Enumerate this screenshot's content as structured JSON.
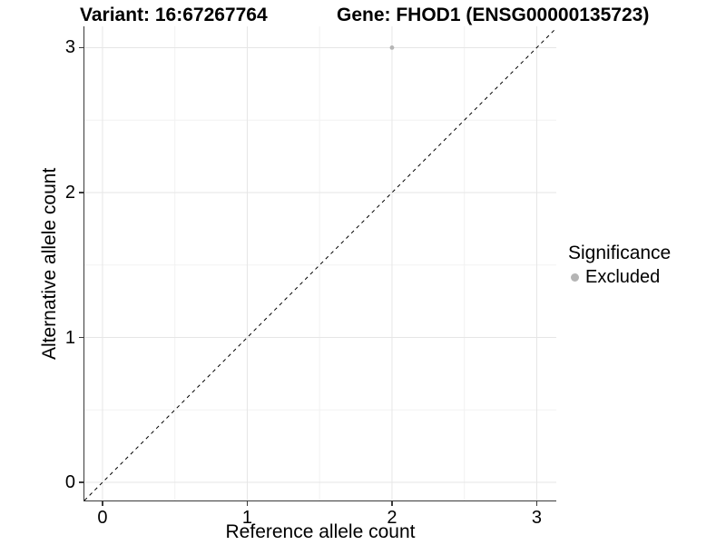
{
  "title": {
    "variant": "Variant: 16:67267764",
    "gene": "Gene: FHOD1 (ENSG00000135723)"
  },
  "axes": {
    "x_label": "Reference allele count",
    "y_label": "Alternative allele count"
  },
  "legend": {
    "title": "Significance",
    "items": [
      {
        "label": "Excluded",
        "color": "#b5b5b5",
        "marker": "circle"
      }
    ]
  },
  "chart_data": {
    "type": "scatter",
    "title": "Variant: 16:67267764 / Gene: FHOD1 (ENSG00000135723)",
    "xlabel": "Reference allele count",
    "ylabel": "Alternative allele count",
    "xlim": [
      -0.125,
      3.135
    ],
    "ylim": [
      -0.125,
      3.147
    ],
    "x_ticks": [
      0,
      1,
      2,
      3
    ],
    "y_ticks": [
      0,
      1,
      2,
      3
    ],
    "minor_gridlines_x": [
      0.5,
      1.5,
      2.5
    ],
    "minor_gridlines_y": [
      0.5,
      1.5,
      2.5
    ],
    "grid": "on",
    "legend_position": "right",
    "series": [
      {
        "name": "Excluded",
        "color": "#b5b5b5",
        "point_radius": 2.4,
        "points": [
          {
            "x": 2,
            "y": 3
          }
        ]
      }
    ],
    "reference_line": {
      "kind": "identity",
      "stroke": "#000000",
      "dash": "4 4",
      "width": 1
    },
    "colors": {
      "background": "#ffffff",
      "grid_major": "#e6e6e6",
      "grid_minor": "#f2f2f2",
      "axis_line": "#3a3a3a",
      "text": "#000000"
    }
  }
}
